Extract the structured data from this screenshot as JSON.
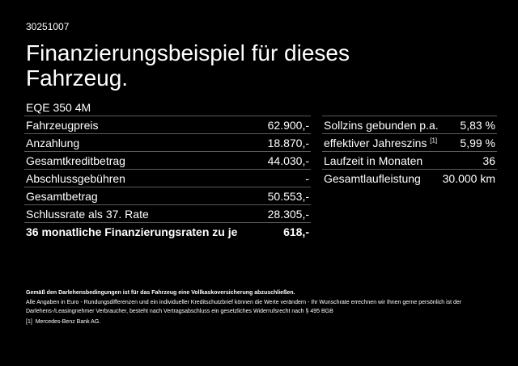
{
  "header": {
    "code": "30251007",
    "title": "Finanzierungsbeispiel für dieses Fahrzeug.",
    "model": "EQE 350 4M"
  },
  "left_table": {
    "rows": [
      [
        "Fahrzeugpreis",
        "62.900,-"
      ],
      [
        "Anzahlung",
        "18.870,-"
      ],
      [
        "Gesamtkreditbetrag",
        "44.030,-"
      ],
      [
        "Abschlussgebühren",
        "-"
      ],
      [
        "Gesamtbetrag",
        "50.553,-"
      ],
      [
        "Schlussrate als 37. Rate",
        "28.305,-"
      ],
      [
        "36 monatliche Finanzierungsraten zu je",
        "618,-"
      ]
    ]
  },
  "right_table": {
    "rows": [
      {
        "label": "Sollzins gebunden p.a.",
        "value": "5,83 %"
      },
      {
        "label": "effektiver Jahreszins",
        "sup": "[1]",
        "value": "5,99 %"
      },
      {
        "label": "Laufzeit in Monaten",
        "value": "36"
      },
      {
        "label": "Gesamtlaufleistung",
        "value": "30.000 km"
      }
    ]
  },
  "footnotes": {
    "bold": "Gemäß den Darlehensbedingungen ist für das Fahrzeug eine Vollkaskoversicherung abzuschließen.",
    "text": "Alle Angaben in Euro - Rundungsdifferenzen und ein individueller Kreditschutzbrief können die Werte verändern - Ihr Wunschrate errechnen wir Ihnen gerne persönlich ist der Darlehens-/Leasingnehmer Verbraucher, besteht nach Vertragsabschluss ein gesetzliches Widerrufsrecht nach § 495 BGB",
    "ref_mark": "[1]",
    "ref_text": "Mercedes-Benz Bank AG."
  }
}
